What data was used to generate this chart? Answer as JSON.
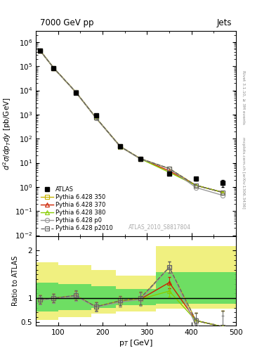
{
  "title_left": "7000 GeV pp",
  "title_right": "Jets",
  "ylabel_main": "$d^2\\sigma/dp_T dy$ [pb/GeV]",
  "ylabel_ratio": "Ratio to ATLAS",
  "xlabel": "p$_T$ [GeV]",
  "watermark": "ATLAS_2010_S8817804",
  "side_text": "Rivet 3.1.10, ≥ 3M events",
  "side_text2": "mcplots.cern.ch [arXiv:1306.3436]",
  "pt": [
    60,
    90,
    140,
    185,
    240,
    285,
    350,
    410,
    470
  ],
  "atlas_y": [
    450000,
    85000,
    8000,
    900,
    50,
    15,
    3.5,
    2.2,
    1.5
  ],
  "atlas_elo": [
    40000,
    8000,
    800,
    80,
    5,
    2,
    0.4,
    0.35,
    0.5
  ],
  "atlas_ehi": [
    40000,
    8000,
    800,
    80,
    5,
    2,
    0.4,
    0.35,
    0.5
  ],
  "ratio_350": [
    0.97,
    1.0,
    1.05,
    0.82,
    0.95,
    1.0,
    1.65,
    0.53,
    0.4
  ],
  "ratio_370": [
    0.97,
    1.0,
    1.05,
    0.82,
    0.93,
    0.98,
    1.33,
    0.53,
    0.4
  ],
  "ratio_380": [
    0.97,
    1.0,
    1.05,
    0.82,
    0.93,
    0.98,
    1.15,
    0.53,
    0.4
  ],
  "ratio_p0": [
    0.96,
    0.99,
    1.04,
    0.81,
    0.92,
    0.97,
    1.65,
    0.43,
    0.3
  ],
  "ratio_p2010": [
    0.97,
    1.0,
    1.06,
    0.82,
    0.95,
    1.0,
    1.65,
    0.53,
    0.4
  ],
  "band_x_edges": [
    50,
    100,
    175,
    230,
    320,
    390,
    500
  ],
  "band_y_lo": [
    0.55,
    0.6,
    0.68,
    0.72,
    0.78,
    0.78
  ],
  "band_y_hi": [
    1.75,
    1.7,
    1.6,
    1.48,
    2.1,
    2.1
  ],
  "band_gy_lo": [
    0.72,
    0.75,
    0.8,
    0.85,
    0.88,
    0.88
  ],
  "band_gy_hi": [
    1.33,
    1.3,
    1.25,
    1.2,
    1.55,
    1.55
  ],
  "color_350": "#c8b400",
  "color_370": "#cc2200",
  "color_380": "#88cc00",
  "color_p0": "#999999",
  "color_p2010": "#666666",
  "xlim": [
    50,
    500
  ],
  "ylim_main_lo": 0.009,
  "ylim_main_hi": 3000000,
  "ylim_ratio_lo": 0.42,
  "ylim_ratio_hi": 2.3
}
